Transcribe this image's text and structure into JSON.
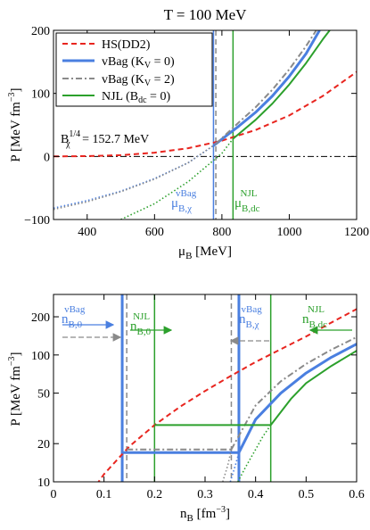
{
  "figure_title": "T = 100 MeV",
  "chart_data": [
    {
      "type": "line",
      "xlabel": "μ_B [MeV]",
      "ylabel": "P [MeV fm^-3]",
      "xlim": [
        300,
        1200
      ],
      "ylim": [
        -100,
        200
      ],
      "xticks": [
        400,
        600,
        800,
        1000,
        1200
      ],
      "yticks": [
        -100,
        0,
        100,
        200
      ],
      "legend": {
        "placement": "top-left",
        "entries": [
          {
            "label": "HS(DD2)",
            "color": "#e8251f",
            "dash": "dashed"
          },
          {
            "label": "vBag (K_V = 0)",
            "color": "#4a7fe0",
            "dash": "solid"
          },
          {
            "label": "vBag (K_V = 2)",
            "color": "#8a8a8a",
            "dash": "dashdot"
          },
          {
            "label": "NJL (B_dc = 0)",
            "color": "#2ca02c",
            "dash": "solid"
          }
        ]
      },
      "annotations": {
        "bchi_text": "B_χ^1/4 = 152.7 MeV",
        "mu_vbag_text": "μ_B,χ^vBag",
        "mu_njl_text": "μ_B,dc^NJL"
      },
      "vlines": [
        {
          "x": 775,
          "color": "#4a7fe0",
          "dash": "solid"
        },
        {
          "x": 782,
          "color": "#8a8a8a",
          "dash": "dashed"
        },
        {
          "x": 833,
          "color": "#2ca02c",
          "dash": "solid"
        }
      ],
      "hlines": [
        {
          "y": 0,
          "color": "#000000",
          "dash": "dashdot"
        }
      ],
      "series": [
        {
          "key": "hs",
          "color": "#e8251f",
          "dash": "dashed",
          "x": [
            300,
            400,
            500,
            600,
            700,
            800,
            900,
            1000,
            1100,
            1200
          ],
          "y": [
            0,
            0.5,
            2,
            6,
            13,
            25,
            42,
            65,
            96,
            134
          ]
        },
        {
          "key": "vbag0_dotted",
          "color": "#4a7fe0",
          "dash": "dotted",
          "x": [
            300,
            400,
            500,
            600,
            700,
            775
          ],
          "y": [
            -82,
            -70,
            -55,
            -35,
            -10,
            17
          ]
        },
        {
          "key": "vbag0",
          "color": "#4a7fe0",
          "dash": "solid",
          "width": 3,
          "x": [
            775,
            850,
            900,
            950,
            1000,
            1050,
            1090
          ],
          "y": [
            17,
            48,
            70,
            96,
            127,
            163,
            200
          ]
        },
        {
          "key": "vbag2_dotted",
          "color": "#8a8a8a",
          "dash": "dotted",
          "x": [
            300,
            400,
            500,
            600,
            700,
            782
          ],
          "y": [
            -84,
            -72,
            -56,
            -36,
            -10,
            20
          ]
        },
        {
          "key": "vbag2",
          "color": "#8a8a8a",
          "dash": "dashdot",
          "x": [
            782,
            850,
            900,
            950,
            1000,
            1050,
            1080
          ],
          "y": [
            20,
            54,
            78,
            106,
            138,
            175,
            200
          ]
        },
        {
          "key": "njl_dotted",
          "color": "#2ca02c",
          "dash": "dotted",
          "x": [
            500,
            600,
            700,
            800,
            833
          ],
          "y": [
            -100,
            -75,
            -40,
            5,
            28
          ]
        },
        {
          "key": "njl",
          "color": "#2ca02c",
          "dash": "solid",
          "x": [
            833,
            900,
            950,
            1000,
            1050,
            1100,
            1120
          ],
          "y": [
            28,
            58,
            84,
            114,
            148,
            186,
            200
          ]
        }
      ]
    },
    {
      "type": "line",
      "xlabel": "n_B [fm^-3]",
      "ylabel": "P [MeV fm^-3]",
      "xlim": [
        0,
        0.6
      ],
      "ylim": [
        10,
        300
      ],
      "yscale": "log",
      "xticks": [
        0,
        0.1,
        0.2,
        0.3,
        0.4,
        0.5,
        0.6
      ],
      "yticks": [
        10,
        20,
        50,
        100,
        200
      ],
      "annotations": {
        "n_vbag0": "n_B,0^vBag",
        "n_njl0": "n_B,0^NJL",
        "n_vbagchi": "n_B,χ^vBag",
        "n_njldc": "n_B,dc^NJL"
      },
      "vlines": [
        {
          "x": 0.136,
          "color": "#4a7fe0",
          "dash": "solid",
          "width": 3
        },
        {
          "x": 0.145,
          "color": "#8a8a8a",
          "dash": "dashed"
        },
        {
          "x": 0.2,
          "color": "#2ca02c",
          "dash": "solid"
        },
        {
          "x": 0.352,
          "color": "#8a8a8a",
          "dash": "dashed"
        },
        {
          "x": 0.367,
          "color": "#4a7fe0",
          "dash": "solid",
          "width": 3
        },
        {
          "x": 0.43,
          "color": "#2ca02c",
          "dash": "solid"
        }
      ],
      "series": [
        {
          "key": "hs",
          "color": "#e8251f",
          "dash": "dashed",
          "x": [
            0.085,
            0.1,
            0.15,
            0.2,
            0.25,
            0.3,
            0.35,
            0.4,
            0.45,
            0.5,
            0.55,
            0.6
          ],
          "y": [
            9.5,
            11.5,
            19,
            28,
            39,
            52,
            68,
            88,
            111,
            140,
            180,
            230
          ]
        },
        {
          "key": "vbag0_plateau",
          "color": "#4a7fe0",
          "dash": "solid",
          "width": 3,
          "x": [
            0.136,
            0.367
          ],
          "y": [
            17,
            17
          ]
        },
        {
          "key": "vbag0",
          "color": "#4a7fe0",
          "dash": "solid",
          "width": 3,
          "x": [
            0.367,
            0.4,
            0.45,
            0.5,
            0.55,
            0.6
          ],
          "y": [
            17,
            31,
            50,
            72,
            96,
            122
          ]
        },
        {
          "key": "vbag0_dotted",
          "color": "#4a7fe0",
          "dash": "dotted",
          "x": [
            0.35,
            0.36,
            0.367
          ],
          "y": [
            10,
            13.5,
            17
          ]
        },
        {
          "key": "vbag2_plateau",
          "color": "#8a8a8a",
          "dash": "dashdot",
          "x": [
            0.145,
            0.352
          ],
          "y": [
            18,
            18
          ]
        },
        {
          "key": "vbag2",
          "color": "#8a8a8a",
          "dash": "dashdot",
          "x": [
            0.352,
            0.4,
            0.45,
            0.5,
            0.55,
            0.6
          ],
          "y": [
            18,
            40,
            62,
            85,
            110,
            138
          ]
        },
        {
          "key": "vbag2_dotted",
          "color": "#8a8a8a",
          "dash": "dotted",
          "x": [
            0.335,
            0.345,
            0.352
          ],
          "y": [
            10,
            13.5,
            18
          ]
        },
        {
          "key": "njl_plateau",
          "color": "#2ca02c",
          "dash": "solid",
          "x": [
            0.2,
            0.43
          ],
          "y": [
            28,
            28
          ]
        },
        {
          "key": "njl",
          "color": "#2ca02c",
          "dash": "solid",
          "x": [
            0.43,
            0.47,
            0.5,
            0.55,
            0.6
          ],
          "y": [
            28,
            45,
            60,
            82,
            108
          ]
        },
        {
          "key": "njl_dotted",
          "color": "#2ca02c",
          "dash": "dotted",
          "x": [
            0.365,
            0.38,
            0.4,
            0.415,
            0.43
          ],
          "y": [
            10,
            13,
            18,
            23,
            28
          ]
        }
      ]
    }
  ]
}
